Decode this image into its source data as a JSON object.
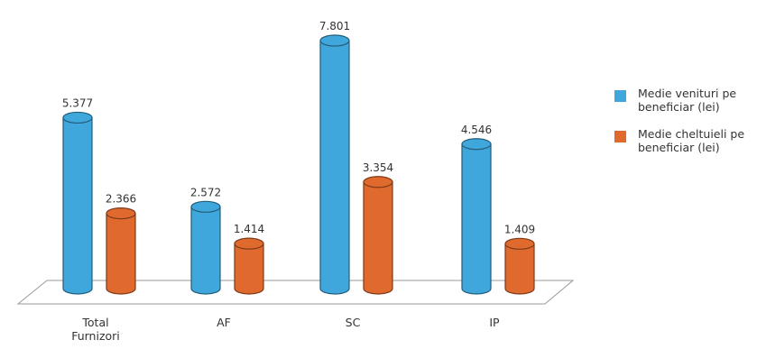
{
  "chart_data": {
    "type": "bar",
    "style": "3d-cylinder",
    "categories": [
      [
        "Total",
        "Furnizori"
      ],
      [
        "AF"
      ],
      [
        "SC"
      ],
      [
        "IP"
      ]
    ],
    "series": [
      {
        "name": "Medie venituri pe beneficiar (lei)",
        "name_lines": [
          "Medie venituri pe",
          "beneficiar (lei)"
        ],
        "color": "#3fa7dc",
        "values": [
          5377,
          2572,
          7801,
          4546
        ],
        "labels": [
          "5.377",
          "2.572",
          "7.801",
          "4.546"
        ]
      },
      {
        "name": "Medie cheltuieli pe beneficiar (lei)",
        "name_lines": [
          "Medie cheltuieli pe",
          "beneficiar (lei)"
        ],
        "color": "#e06a2e",
        "values": [
          2366,
          1414,
          3354,
          1409
        ],
        "labels": [
          "2.366",
          "1.414",
          "3.354",
          "1.409"
        ]
      }
    ],
    "ylim": [
      0,
      8000
    ],
    "grid": false,
    "legend_position": "right"
  }
}
